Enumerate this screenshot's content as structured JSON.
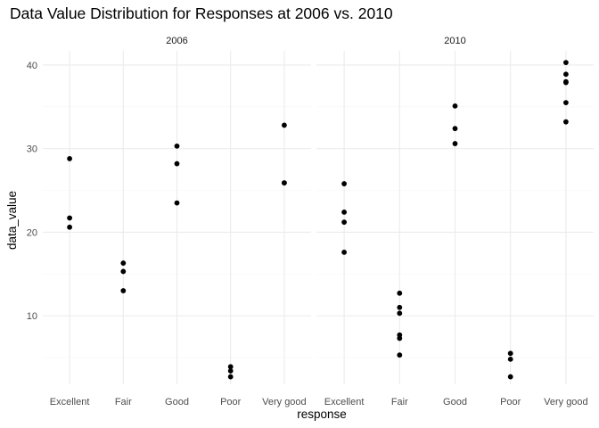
{
  "chart_data": {
    "type": "scatter",
    "title": "Data Value Distribution for Responses at 2006 vs. 2010",
    "xlabel": "response",
    "ylabel": "data_value",
    "categories": [
      "Excellent",
      "Fair",
      "Good",
      "Poor",
      "Very good"
    ],
    "ylim": [
      1.8,
      41.7
    ],
    "yticks": [
      10,
      20,
      30,
      40
    ],
    "grid": true,
    "legend": "none",
    "point_color": "#000000",
    "panels": [
      {
        "label": "2006",
        "points": [
          {
            "x": "Excellent",
            "y": 28.8
          },
          {
            "x": "Excellent",
            "y": 21.7
          },
          {
            "x": "Excellent",
            "y": 20.6
          },
          {
            "x": "Fair",
            "y": 16.3
          },
          {
            "x": "Fair",
            "y": 15.3
          },
          {
            "x": "Fair",
            "y": 13.0
          },
          {
            "x": "Good",
            "y": 30.3
          },
          {
            "x": "Good",
            "y": 28.2
          },
          {
            "x": "Good",
            "y": 23.5
          },
          {
            "x": "Poor",
            "y": 3.9
          },
          {
            "x": "Poor",
            "y": 3.4
          },
          {
            "x": "Poor",
            "y": 2.7
          },
          {
            "x": "Very good",
            "y": 32.8
          },
          {
            "x": "Very good",
            "y": 25.9
          },
          {
            "x": "Very good",
            "y": 25.9
          }
        ]
      },
      {
        "label": "2010",
        "points": [
          {
            "x": "Excellent",
            "y": 25.8
          },
          {
            "x": "Excellent",
            "y": 22.4
          },
          {
            "x": "Excellent",
            "y": 21.2
          },
          {
            "x": "Excellent",
            "y": 17.6
          },
          {
            "x": "Fair",
            "y": 12.7
          },
          {
            "x": "Fair",
            "y": 11.0
          },
          {
            "x": "Fair",
            "y": 10.3
          },
          {
            "x": "Fair",
            "y": 7.7
          },
          {
            "x": "Fair",
            "y": 7.3
          },
          {
            "x": "Fair",
            "y": 5.3
          },
          {
            "x": "Good",
            "y": 35.1
          },
          {
            "x": "Good",
            "y": 32.4
          },
          {
            "x": "Good",
            "y": 30.6
          },
          {
            "x": "Poor",
            "y": 5.5
          },
          {
            "x": "Poor",
            "y": 4.8
          },
          {
            "x": "Poor",
            "y": 2.7
          },
          {
            "x": "Very good",
            "y": 40.3
          },
          {
            "x": "Very good",
            "y": 38.9
          },
          {
            "x": "Very good",
            "y": 38.0
          },
          {
            "x": "Very good",
            "y": 37.9
          },
          {
            "x": "Very good",
            "y": 35.5
          },
          {
            "x": "Very good",
            "y": 33.2
          }
        ]
      }
    ]
  }
}
